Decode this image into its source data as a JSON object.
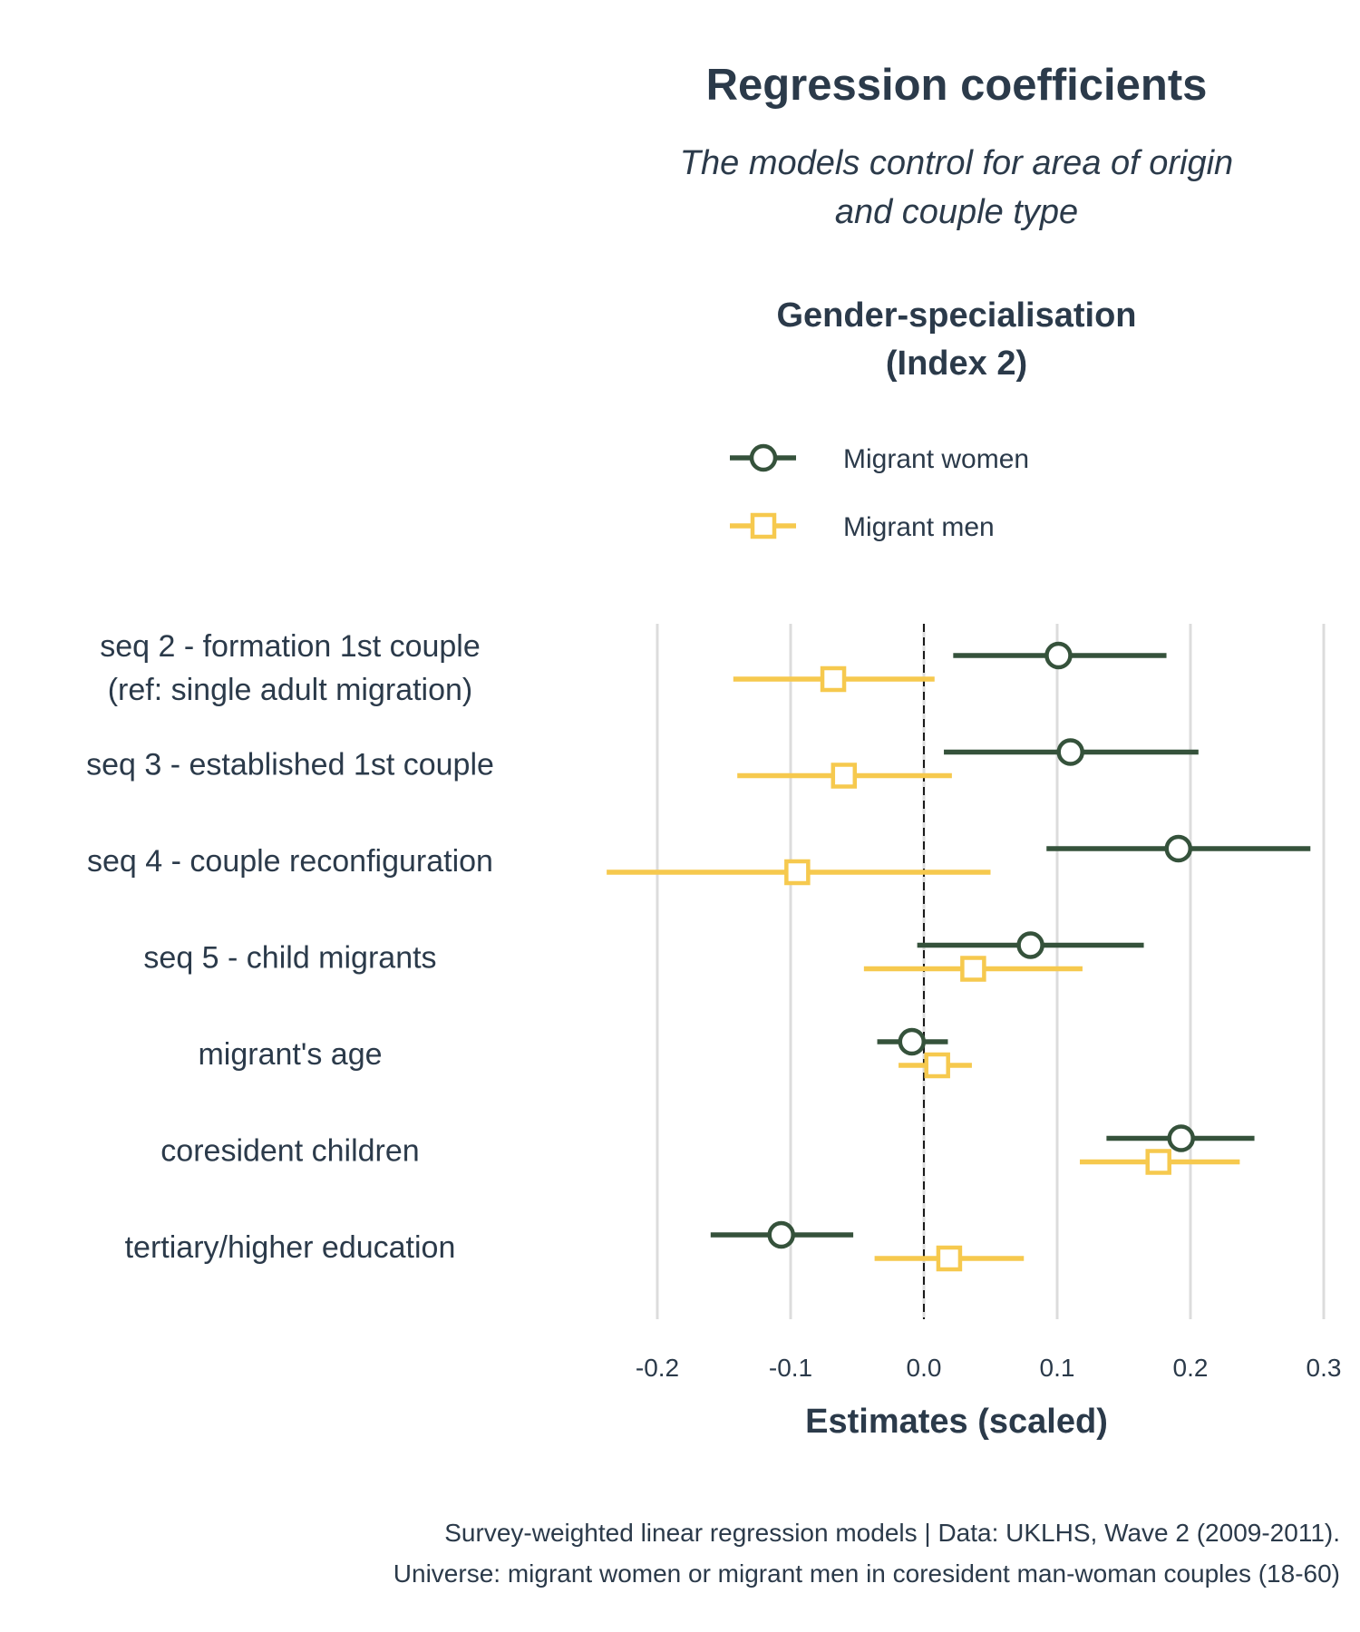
{
  "chart_data": {
    "type": "coefficient-plot",
    "title": "Regression coefficients",
    "subtitle": [
      "The models control for area of origin",
      "and couple type"
    ],
    "facet_title": [
      "Gender-specialisation",
      "(Index 2)"
    ],
    "xlabel": "Estimates (scaled)",
    "xlim": [
      -0.2,
      0.3
    ],
    "x_ticks": [
      "-0.2",
      "-0.1",
      "0.0",
      "0.1",
      "0.2",
      "0.3"
    ],
    "x_tick_values": [
      -0.2,
      -0.1,
      0.0,
      0.1,
      0.2,
      0.3
    ],
    "reference_line": 0,
    "grid": "vertical major",
    "legend_position": "top",
    "categories": [
      [
        "seq 2 - formation 1st couple",
        "(ref: single adult migration)"
      ],
      [
        "seq 3 - established 1st couple"
      ],
      [
        "seq 4 - couple reconfiguration"
      ],
      [
        "seq 5 - child migrants"
      ],
      [
        "migrant's age"
      ],
      [
        "coresident children"
      ],
      [
        "tertiary/higher education"
      ]
    ],
    "series": [
      {
        "name": "Migrant women",
        "marker": "circle",
        "color": "#35523b",
        "estimates": [
          0.101,
          0.11,
          0.191,
          0.08,
          -0.009,
          0.193,
          -0.107
        ],
        "ci_low": [
          0.022,
          0.015,
          0.092,
          -0.005,
          -0.035,
          0.137,
          -0.16
        ],
        "ci_high": [
          0.182,
          0.206,
          0.29,
          0.165,
          0.018,
          0.248,
          -0.053
        ]
      },
      {
        "name": "Migrant men",
        "marker": "square",
        "color": "#f6c94e",
        "estimates": [
          -0.068,
          -0.06,
          -0.095,
          0.037,
          0.01,
          0.176,
          0.019
        ],
        "ci_low": [
          -0.143,
          -0.14,
          -0.238,
          -0.045,
          -0.019,
          0.117,
          -0.037
        ],
        "ci_high": [
          0.008,
          0.021,
          0.05,
          0.119,
          0.036,
          0.237,
          0.075
        ]
      }
    ],
    "caption": [
      "Survey-weighted linear regression models | Data: UKLHS, Wave 2 (2009-2011).",
      "Universe: migrant women or migrant men in coresident man-woman couples (18-60)"
    ]
  }
}
